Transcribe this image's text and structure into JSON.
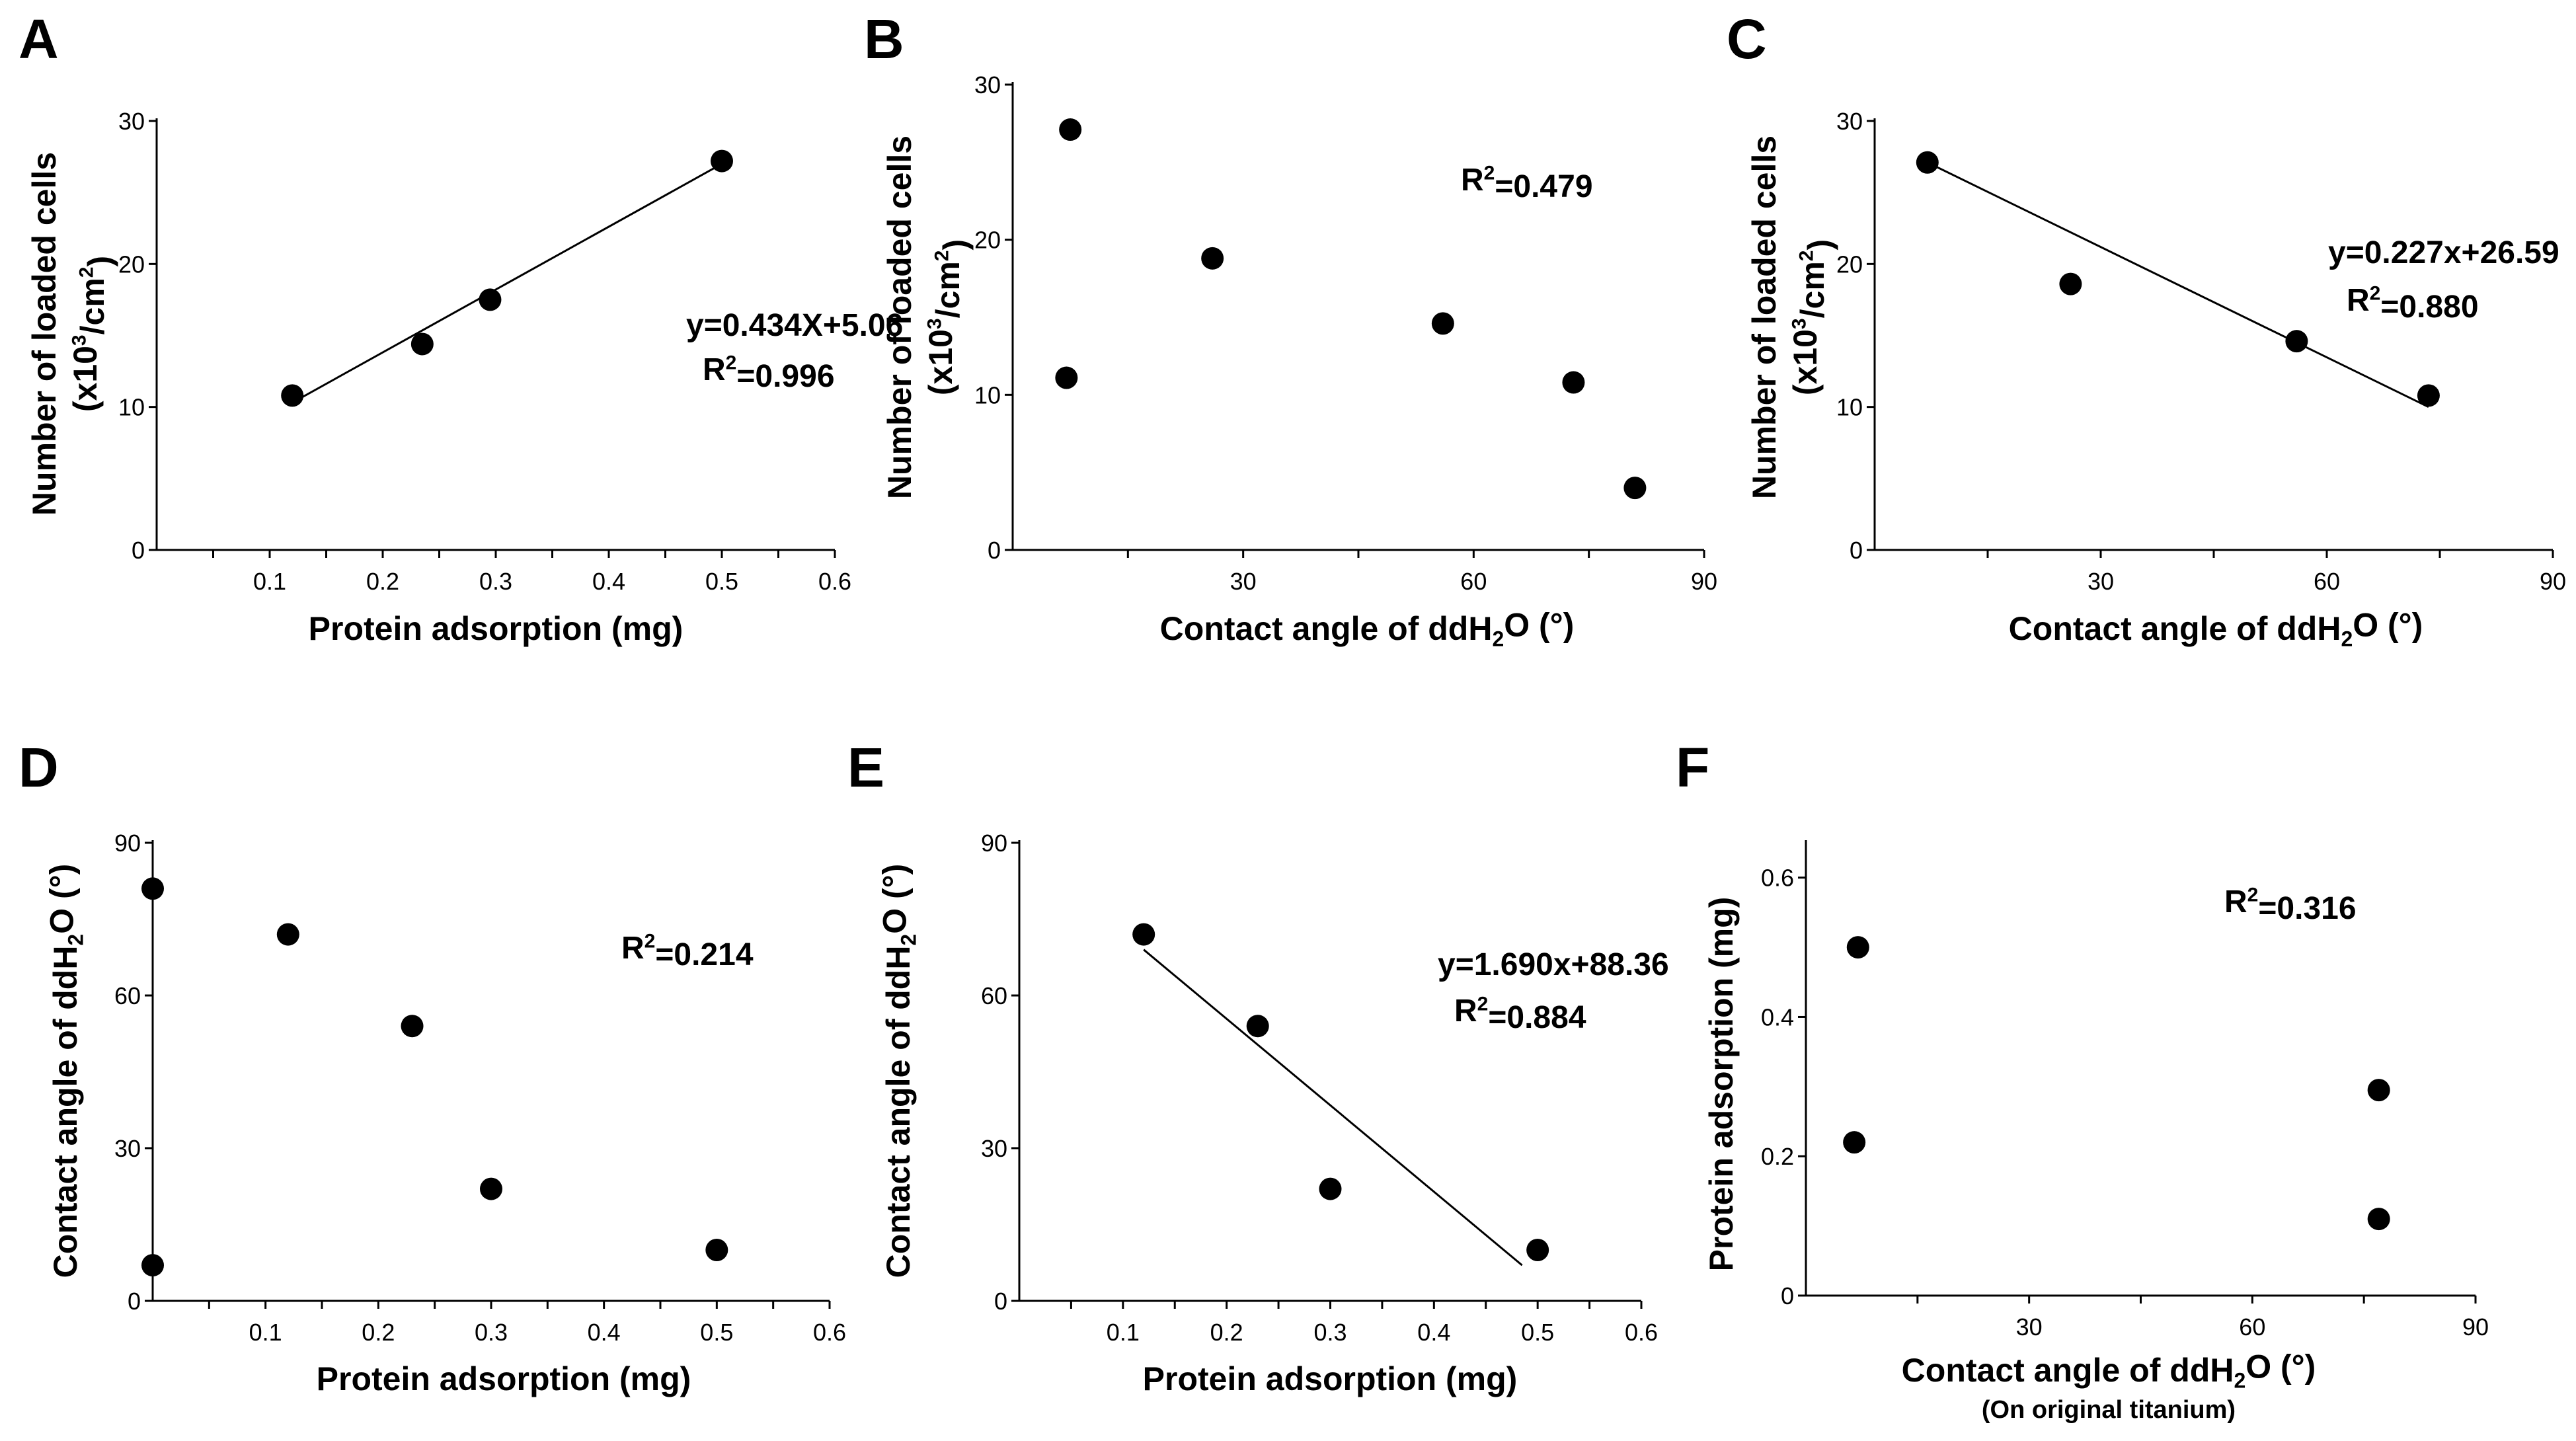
{
  "chart_data": [
    {
      "panel": "A",
      "type": "scatter",
      "xlabel": "Protein adsorption (mg)",
      "ylabel": "Number of loaded cells",
      "ylabel_unit": "(x10³/cm²)",
      "xlim": [
        0,
        0.6
      ],
      "ylim": [
        0,
        30
      ],
      "xticks": [
        "0.1",
        "0.2",
        "0.3",
        "0.4",
        "0.5",
        "0.6"
      ],
      "yticks": [
        "0",
        "10",
        "20",
        "30"
      ],
      "x": [
        0.12,
        0.235,
        0.295,
        0.5
      ],
      "y": [
        10.8,
        14.4,
        17.5,
        27.2
      ],
      "fit_line": [
        [
          0.12,
          10.3
        ],
        [
          0.5,
          27.0
        ]
      ],
      "equation": "y=0.434X+5.06",
      "r2": "R²=0.996"
    },
    {
      "panel": "B",
      "type": "scatter",
      "xlabel": "Contact angle of ddH₂O (°)",
      "ylabel": "Number of loaded cells",
      "ylabel_unit": "(x10³/cm²)",
      "xlim": [
        0,
        90
      ],
      "ylim": [
        0,
        30
      ],
      "xticks": [
        "30",
        "60",
        "90"
      ],
      "yticks": [
        "0",
        "10",
        "20",
        "30"
      ],
      "x": [
        7.5,
        7,
        26,
        56,
        73,
        81
      ],
      "y": [
        27.1,
        11.1,
        18.8,
        14.6,
        10.8,
        4
      ],
      "r2": "R²=0.479"
    },
    {
      "panel": "C",
      "type": "scatter",
      "xlabel": "Contact angle of ddH₂O (°)",
      "ylabel": "Number of loaded cells",
      "ylabel_unit": "(x10³/cm²)",
      "xlim": [
        0,
        90
      ],
      "ylim": [
        0,
        30
      ],
      "xticks": [
        "30",
        "60",
        "90"
      ],
      "yticks": [
        "0",
        "10",
        "20",
        "30"
      ],
      "x": [
        7,
        26,
        56,
        73.5
      ],
      "y": [
        27.1,
        18.6,
        14.6,
        10.8
      ],
      "fit_line": [
        [
          7,
          27.1
        ],
        [
          73.5,
          10.0
        ]
      ],
      "equation": "y=0.227x+26.59",
      "r2": "R²=0.880"
    },
    {
      "panel": "D",
      "type": "scatter",
      "xlabel": "Protein adsorption (mg)",
      "ylabel": "Contact angle of ddH₂O (°)",
      "xlim": [
        0,
        0.6
      ],
      "ylim": [
        0,
        90
      ],
      "xticks": [
        "0.1",
        "0.2",
        "0.3",
        "0.4",
        "0.5",
        "0.6"
      ],
      "yticks": [
        "0",
        "30",
        "60",
        "90"
      ],
      "x": [
        0.0,
        0.0,
        0.12,
        0.23,
        0.3,
        0.5
      ],
      "y": [
        81,
        7,
        72,
        54,
        22,
        10
      ],
      "r2": "R²=0.214"
    },
    {
      "panel": "E",
      "type": "scatter",
      "xlabel": "Protein adsorption (mg)",
      "ylabel": "Contact angle of ddH₂O (°)",
      "xlim": [
        0,
        0.6
      ],
      "ylim": [
        0,
        90
      ],
      "xticks": [
        "0.1",
        "0.2",
        "0.3",
        "0.4",
        "0.5",
        "0.6"
      ],
      "yticks": [
        "0",
        "30",
        "60",
        "90"
      ],
      "x": [
        0.12,
        0.23,
        0.3,
        0.5
      ],
      "y": [
        72,
        54,
        22,
        10
      ],
      "fit_line": [
        [
          0.12,
          69
        ],
        [
          0.485,
          7
        ]
      ],
      "equation": "y=1.690x+88.36",
      "r2": "R²=0.884"
    },
    {
      "panel": "F",
      "type": "scatter",
      "xlabel": "Contact angle of ddH₂O (°)",
      "xlabel_note": "(On original titanium)",
      "ylabel": "Protein adsorption (mg)",
      "xlim": [
        0,
        90
      ],
      "ylim": [
        0,
        0.65
      ],
      "xticks": [
        "30",
        "60",
        "90"
      ],
      "yticks": [
        "0",
        "0.2",
        "0.4",
        "0.6"
      ],
      "x": [
        7,
        6.5,
        77,
        77
      ],
      "y": [
        0.5,
        0.22,
        0.295,
        0.11
      ],
      "r2": "R²=0.316"
    }
  ]
}
